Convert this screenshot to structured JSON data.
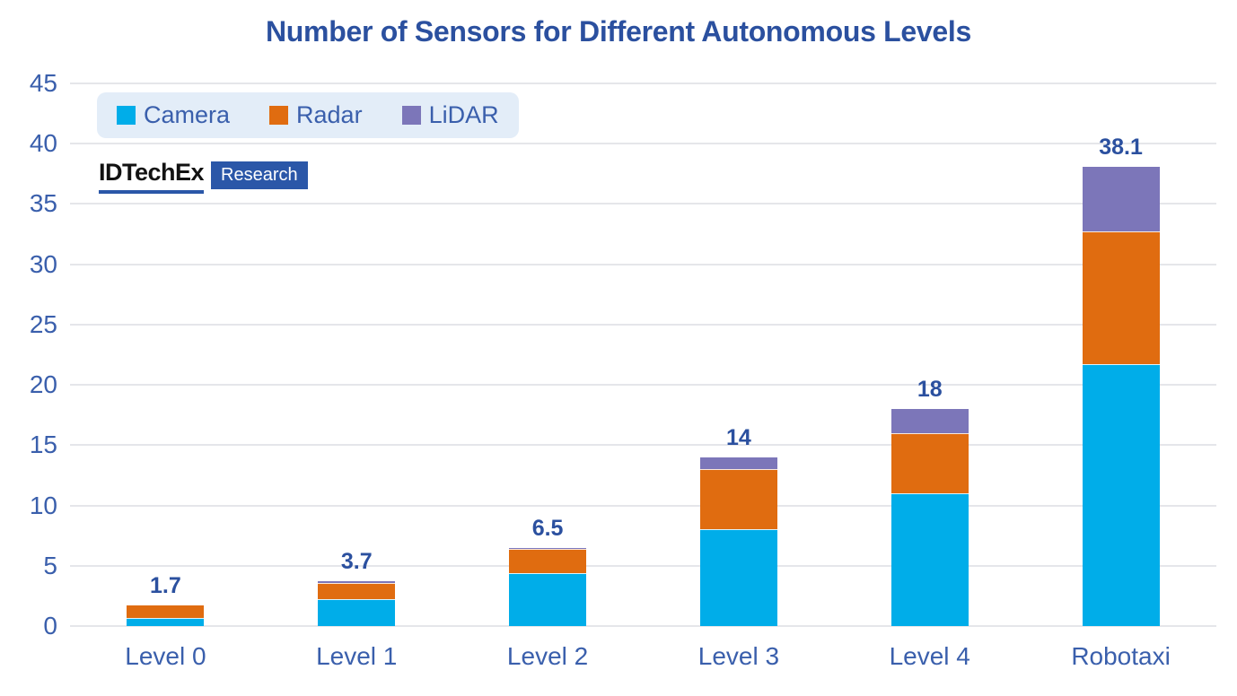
{
  "title": "Number of Sensors for Different Autonomous Levels",
  "logo": {
    "brand": "IDTechEx",
    "suffix": "Research"
  },
  "chart_data": {
    "type": "bar",
    "stacked": true,
    "categories": [
      "Level 0",
      "Level 1",
      "Level 2",
      "Level 3",
      "Level 4",
      "Robotaxi"
    ],
    "series": [
      {
        "name": "Camera",
        "color": "#00ADE9",
        "values": [
          0.7,
          2.2,
          4.4,
          8,
          11,
          21.7
        ]
      },
      {
        "name": "Radar",
        "color": "#E06C10",
        "values": [
          1.0,
          1.4,
          2.0,
          5,
          5,
          11
        ]
      },
      {
        "name": "LiDAR",
        "color": "#7C76B9",
        "values": [
          0,
          0.1,
          0.1,
          1,
          2,
          5.4
        ]
      }
    ],
    "totals": [
      "1.7",
      "3.7",
      "6.5",
      "14",
      "18",
      "38.1"
    ],
    "title": "Number of Sensors for Different Autonomous Levels",
    "xlabel": "",
    "ylabel": "",
    "ylim": [
      0,
      45
    ],
    "yticks": [
      0,
      5,
      10,
      15,
      20,
      25,
      30,
      35,
      40,
      45
    ],
    "grid": "horizontal",
    "legend_position": "top-left"
  },
  "colors": {
    "title_text": "#2B509F",
    "axis_text": "#3A5FAC",
    "gridline": "#E5E6EA",
    "legend_bg": "#E3EDF8",
    "logo_blue": "#2B57A8",
    "background": "#FFFFFF"
  }
}
